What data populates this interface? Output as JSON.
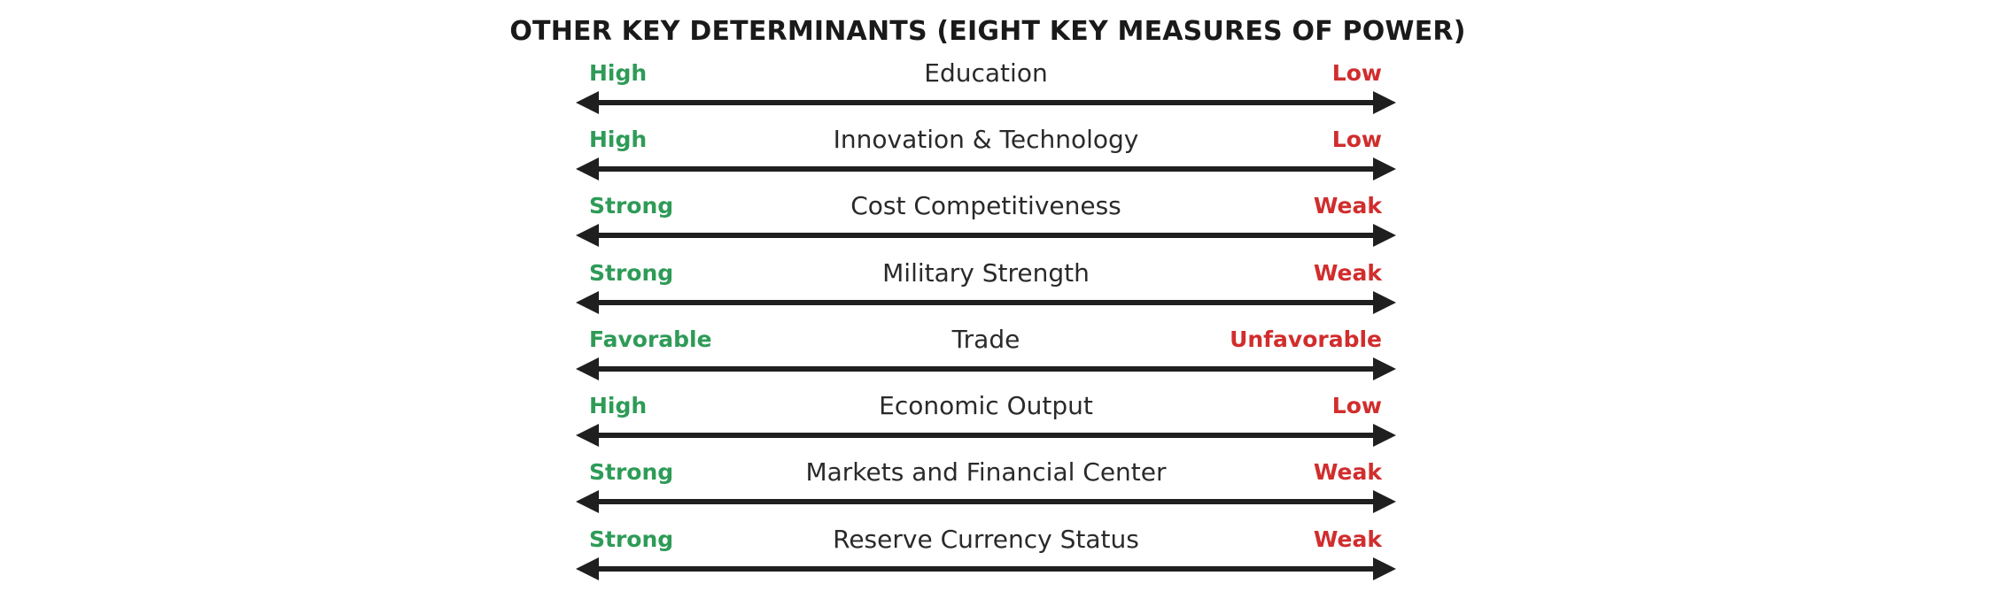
{
  "title": "OTHER KEY DETERMINANTS (EIGHT KEY MEASURES OF POWER)",
  "colors": {
    "positive": "#2e9b57",
    "negative": "#d12d2d",
    "arrow": "#1f1f1f",
    "text": "#2a2a2a"
  },
  "measures": [
    {
      "name": "Education",
      "left": "High",
      "right": "Low"
    },
    {
      "name": "Innovation & Technology",
      "left": "High",
      "right": "Low"
    },
    {
      "name": "Cost Competitiveness",
      "left": "Strong",
      "right": "Weak"
    },
    {
      "name": "Military Strength",
      "left": "Strong",
      "right": "Weak"
    },
    {
      "name": "Trade",
      "left": "Favorable",
      "right": "Unfavorable"
    },
    {
      "name": "Economic Output",
      "left": "High",
      "right": "Low"
    },
    {
      "name": "Markets and Financial Center",
      "left": "Strong",
      "right": "Weak"
    },
    {
      "name": "Reserve Currency Status",
      "left": "Strong",
      "right": "Weak"
    }
  ]
}
